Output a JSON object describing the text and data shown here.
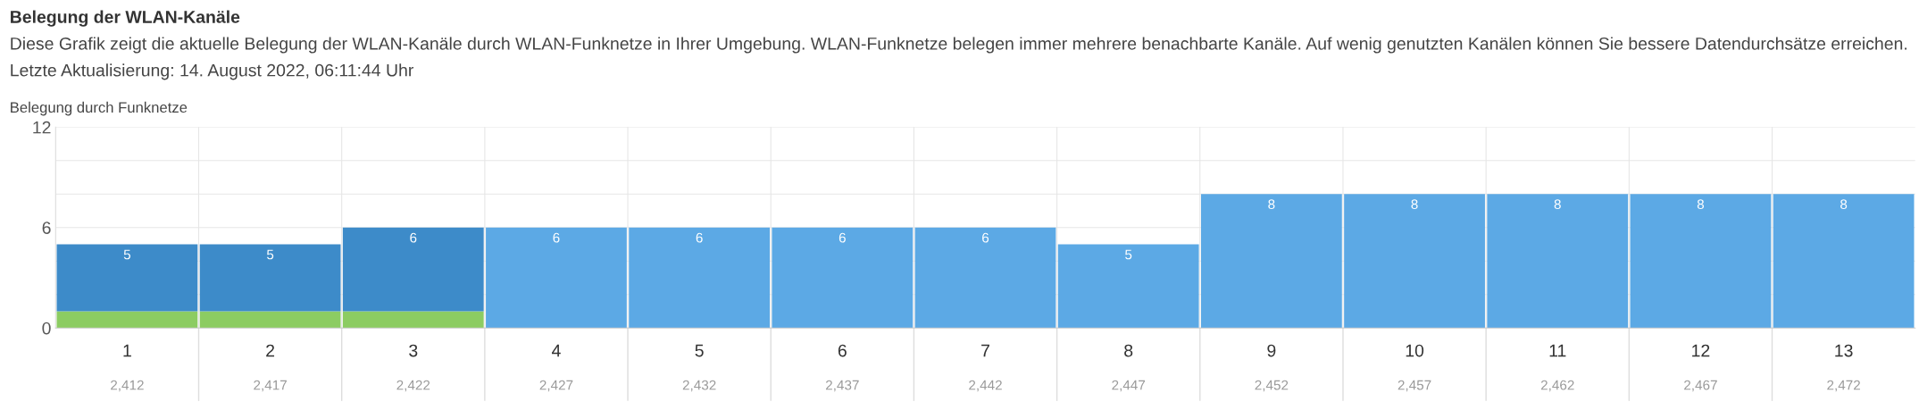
{
  "chart_data": {
    "type": "bar",
    "title": "Belegung der WLAN-Kanäle",
    "subtitle": "Diese Grafik zeigt die aktuelle Belegung der WLAN-Kanäle durch WLAN-Funknetze in Ihrer Umgebung. WLAN-Funknetze belegen immer mehrere benachbarte Kanäle. Auf wenig genutzten Kanälen können Sie bessere Datendurchsätze erreichen.",
    "annotations": [
      "Letzte Aktualisierung: 14. August 2022, 06:11:44 Uhr"
    ],
    "ylabel": "Belegung durch Funknetze",
    "categories": [
      "1\n2,412",
      "2\n2,417",
      "3\n2,422",
      "4\n2,427",
      "5\n2,432",
      "6\n2,437",
      "7\n2,442",
      "8\n2,447",
      "9\n2,452",
      "10\n2,457",
      "11\n2,462",
      "12\n2,467",
      "13\n2,472"
    ],
    "stacked": true,
    "series": [
      {
        "color": "#8ccc62",
        "values": [
          1,
          1,
          1,
          null,
          null,
          null,
          null,
          null,
          null,
          null,
          null,
          null,
          null
        ]
      },
      {
        "color": "#3d8bc9",
        "values": [
          4,
          4,
          5,
          null,
          null,
          null,
          null,
          null,
          null,
          null,
          null,
          null,
          null
        ]
      },
      {
        "color": "#5ca9e5",
        "values": [
          null,
          null,
          null,
          6,
          6,
          6,
          6,
          5,
          8,
          8,
          8,
          8,
          8
        ]
      }
    ],
    "totals": [
      "5",
      "5",
      "6",
      "6",
      "6",
      "6",
      "6",
      "5",
      "8",
      "8",
      "8",
      "8",
      "8"
    ],
    "ylim": [
      0,
      12
    ],
    "yticks": [
      0,
      {
        "value": 2,
        "label": null
      },
      {
        "value": 4,
        "label": null
      },
      6,
      {
        "value": 8,
        "label": null
      },
      {
        "value": 10,
        "label": null
      },
      12
    ],
    "grid": true
  }
}
